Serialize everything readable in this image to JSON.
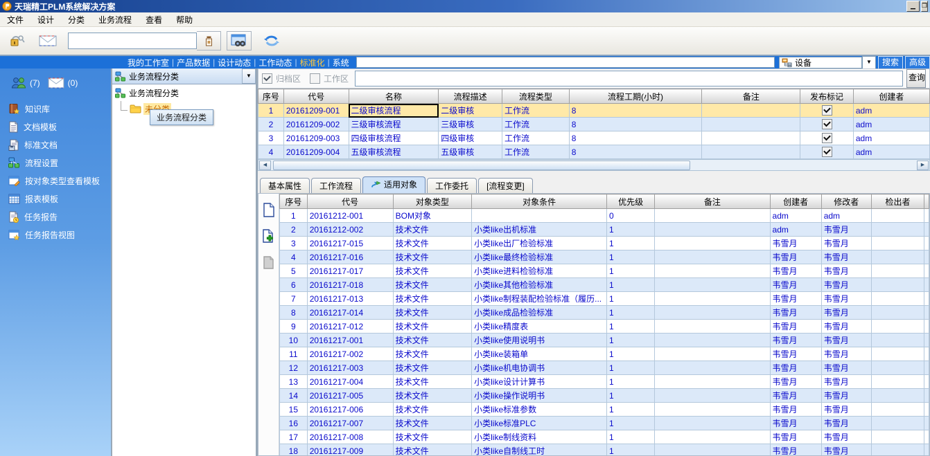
{
  "window": {
    "title": "天瑞精工PLM系统解决方案"
  },
  "menu": {
    "items": [
      "文件",
      "设计",
      "分类",
      "业务流程",
      "查看",
      "帮助"
    ]
  },
  "toolbar": {
    "search_value": "",
    "icons": [
      "lock-icon",
      "mail-icon",
      "stamp-icon",
      "find-icon",
      "refresh-icon"
    ]
  },
  "nav_tabs": {
    "items": [
      "我的工作室",
      "产品数据",
      "设计动态",
      "工作动态",
      "标准化",
      "系统"
    ],
    "active": "标准化"
  },
  "global_search": {
    "value": "",
    "category": "设备",
    "category_icon": "device-icon",
    "search_label": "搜索",
    "advanced_label": "高级"
  },
  "sidebar": {
    "users_count": "(7)",
    "mail_count": "(0)",
    "items": [
      {
        "label": "知识库",
        "icon": "knowledge-base-icon"
      },
      {
        "label": "文档模板",
        "icon": "doc-template-icon"
      },
      {
        "label": "标准文档",
        "icon": "standard-doc-icon"
      },
      {
        "label": "流程设置",
        "icon": "flow-settings-icon"
      },
      {
        "label": "按对象类型查看模板",
        "icon": "view-by-type-icon"
      },
      {
        "label": "报表模板",
        "icon": "report-template-icon"
      },
      {
        "label": "任务报告",
        "icon": "task-report-icon"
      },
      {
        "label": "任务报告视图",
        "icon": "task-report-view-icon"
      }
    ]
  },
  "tree": {
    "combo_label": "业务流程分类",
    "root_label": "业务流程分类",
    "child_label": "未分类",
    "tooltip": "业务流程分类"
  },
  "filter": {
    "archive_label": "归档区",
    "archive_checked": true,
    "work_label": "工作区",
    "work_checked": false,
    "input_value": "",
    "query_label": "查询"
  },
  "process_table": {
    "headers": [
      "序号",
      "代号",
      "名称",
      "流程描述",
      "流程类型",
      "流程工期(小时)",
      "备注",
      "发布标记",
      "创建者"
    ],
    "rows": [
      {
        "seq": "1",
        "code": "20161209-001",
        "name": "二级审核流程",
        "desc": "二级审核",
        "type": "工作流",
        "hours": "8",
        "note": "",
        "published": true,
        "creator": "adm"
      },
      {
        "seq": "2",
        "code": "20161209-002",
        "name": "三级审核流程",
        "desc": "三级审核",
        "type": "工作流",
        "hours": "8",
        "note": "",
        "published": true,
        "creator": "adm"
      },
      {
        "seq": "3",
        "code": "20161209-003",
        "name": "四级审核流程",
        "desc": "四级审核",
        "type": "工作流",
        "hours": "8",
        "note": "",
        "published": true,
        "creator": "adm"
      },
      {
        "seq": "4",
        "code": "20161209-004",
        "name": "五级审核流程",
        "desc": "五级审核",
        "type": "工作流",
        "hours": "8",
        "note": "",
        "published": true,
        "creator": "adm"
      }
    ]
  },
  "detail_tabs": {
    "items": [
      "基本属性",
      "工作流程",
      "适用对象",
      "工作委托",
      "[流程变更]"
    ],
    "active": "适用对象",
    "active_icon": "applicable-object-icon"
  },
  "object_table": {
    "headers": [
      "序号",
      "代号",
      "对象类型",
      "对象条件",
      "优先级",
      "备注",
      "创建者",
      "修改者",
      "检出者"
    ],
    "rows": [
      {
        "seq": "1",
        "code": "20161212-001",
        "type": "BOM对象",
        "cond": "",
        "prio": "0",
        "note": "",
        "creator": "adm",
        "modifier": "adm",
        "checkout": ""
      },
      {
        "seq": "2",
        "code": "20161212-002",
        "type": "技术文件",
        "cond": "小类like出机标准",
        "prio": "1",
        "note": "",
        "creator": "adm",
        "modifier": "韦雪月",
        "checkout": ""
      },
      {
        "seq": "3",
        "code": "20161217-015",
        "type": "技术文件",
        "cond": "小类like出厂检验标准",
        "prio": "1",
        "note": "",
        "creator": "韦雪月",
        "modifier": "韦雪月",
        "checkout": ""
      },
      {
        "seq": "4",
        "code": "20161217-016",
        "type": "技术文件",
        "cond": "小类like最终检验标准",
        "prio": "1",
        "note": "",
        "creator": "韦雪月",
        "modifier": "韦雪月",
        "checkout": ""
      },
      {
        "seq": "5",
        "code": "20161217-017",
        "type": "技术文件",
        "cond": "小类like进料检验标准",
        "prio": "1",
        "note": "",
        "creator": "韦雪月",
        "modifier": "韦雪月",
        "checkout": ""
      },
      {
        "seq": "6",
        "code": "20161217-018",
        "type": "技术文件",
        "cond": "小类like其他检验标准",
        "prio": "1",
        "note": "",
        "creator": "韦雪月",
        "modifier": "韦雪月",
        "checkout": ""
      },
      {
        "seq": "7",
        "code": "20161217-013",
        "type": "技术文件",
        "cond": "小类like制程装配检验标准（履历...",
        "prio": "1",
        "note": "",
        "creator": "韦雪月",
        "modifier": "韦雪月",
        "checkout": ""
      },
      {
        "seq": "8",
        "code": "20161217-014",
        "type": "技术文件",
        "cond": "小类like成品检验标准",
        "prio": "1",
        "note": "",
        "creator": "韦雪月",
        "modifier": "韦雪月",
        "checkout": ""
      },
      {
        "seq": "9",
        "code": "20161217-012",
        "type": "技术文件",
        "cond": "小类like精度表",
        "prio": "1",
        "note": "",
        "creator": "韦雪月",
        "modifier": "韦雪月",
        "checkout": ""
      },
      {
        "seq": "10",
        "code": "20161217-001",
        "type": "技术文件",
        "cond": "小类like使用说明书",
        "prio": "1",
        "note": "",
        "creator": "韦雪月",
        "modifier": "韦雪月",
        "checkout": ""
      },
      {
        "seq": "11",
        "code": "20161217-002",
        "type": "技术文件",
        "cond": "小类like装箱单",
        "prio": "1",
        "note": "",
        "creator": "韦雪月",
        "modifier": "韦雪月",
        "checkout": ""
      },
      {
        "seq": "12",
        "code": "20161217-003",
        "type": "技术文件",
        "cond": "小类like机电协调书",
        "prio": "1",
        "note": "",
        "creator": "韦雪月",
        "modifier": "韦雪月",
        "checkout": ""
      },
      {
        "seq": "13",
        "code": "20161217-004",
        "type": "技术文件",
        "cond": "小类like设计计算书",
        "prio": "1",
        "note": "",
        "creator": "韦雪月",
        "modifier": "韦雪月",
        "checkout": ""
      },
      {
        "seq": "14",
        "code": "20161217-005",
        "type": "技术文件",
        "cond": "小类like操作说明书",
        "prio": "1",
        "note": "",
        "creator": "韦雪月",
        "modifier": "韦雪月",
        "checkout": ""
      },
      {
        "seq": "15",
        "code": "20161217-006",
        "type": "技术文件",
        "cond": "小类like标准参数",
        "prio": "1",
        "note": "",
        "creator": "韦雪月",
        "modifier": "韦雪月",
        "checkout": ""
      },
      {
        "seq": "16",
        "code": "20161217-007",
        "type": "技术文件",
        "cond": "小类like标准PLC",
        "prio": "1",
        "note": "",
        "creator": "韦雪月",
        "modifier": "韦雪月",
        "checkout": ""
      },
      {
        "seq": "17",
        "code": "20161217-008",
        "type": "技术文件",
        "cond": "小类like制线资料",
        "prio": "1",
        "note": "",
        "creator": "韦雪月",
        "modifier": "韦雪月",
        "checkout": ""
      },
      {
        "seq": "18",
        "code": "20161217-009",
        "type": "技术文件",
        "cond": "小类like自制线工时",
        "prio": "1",
        "note": "",
        "creator": "韦雪月",
        "modifier": "韦雪月",
        "checkout": ""
      }
    ]
  }
}
